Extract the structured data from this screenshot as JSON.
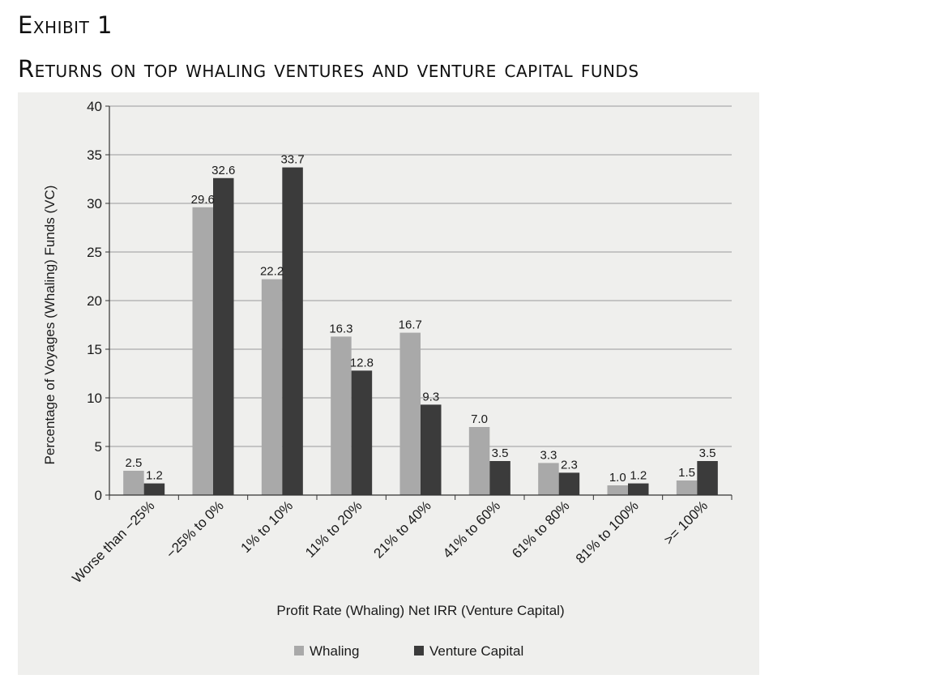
{
  "header": {
    "exhibit_label": "Exhibit 1",
    "title": "Returns on top whaling ventures and venture capital funds"
  },
  "chart_data": {
    "type": "bar",
    "ylabel": "Percentage of Voyages (Whaling) Funds (VC)",
    "xlabel": "Profit Rate (Whaling) Net IRR (Venture Capital)",
    "ylim": [
      0,
      40
    ],
    "yticks": [
      0,
      5,
      10,
      15,
      20,
      25,
      30,
      35,
      40
    ],
    "ytick_labels": [
      "0",
      "5",
      "10",
      "15",
      "20",
      "25",
      "30",
      "35",
      "40"
    ],
    "grid": true,
    "legend_position": "bottom-center",
    "categories": [
      "Worse than −25%",
      "−25% to 0%",
      "1% to 10%",
      "11% to 20%",
      "21% to 40%",
      "41% to 60%",
      "61% to 80%",
      "81% to 100%",
      ">= 100%"
    ],
    "series": [
      {
        "name": "Whaling",
        "color": "#a9a9a9",
        "values": [
          2.5,
          29.6,
          22.2,
          16.3,
          16.7,
          7.0,
          3.3,
          1.0,
          1.5
        ],
        "labels": [
          "2.5",
          "29.6",
          "22.2",
          "16.3",
          "16.7",
          "7.0",
          "3.3",
          "1.0",
          "1.5"
        ]
      },
      {
        "name": "Venture Capital",
        "color": "#3b3b3b",
        "values": [
          1.2,
          32.6,
          33.7,
          12.8,
          9.3,
          3.5,
          2.3,
          1.2,
          3.5
        ],
        "labels": [
          "1.2",
          "32.6",
          "33.7",
          "12.8",
          "9.3",
          "3.5",
          "2.3",
          "1.2",
          "3.5"
        ]
      }
    ]
  }
}
